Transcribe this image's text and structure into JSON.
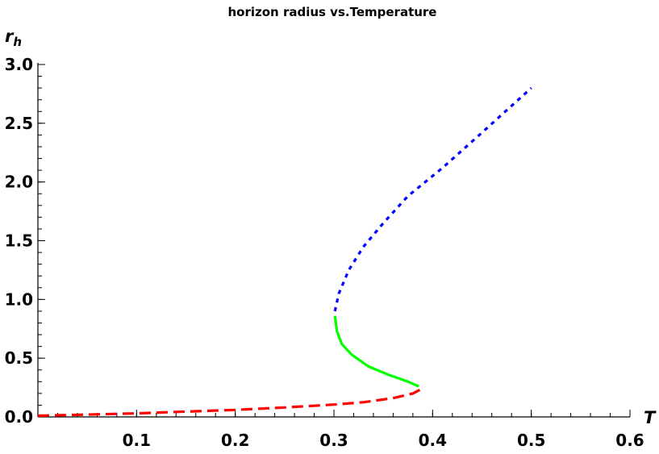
{
  "chart_data": {
    "type": "line",
    "title": "horizon radius vs.Temperature",
    "xlabel": "T",
    "ylabel_main": "r",
    "ylabel_sub": "h",
    "xlim": [
      0,
      0.6
    ],
    "ylim": [
      0,
      3.0
    ],
    "x_ticks": [
      {
        "value": 0.1,
        "label": "0.1"
      },
      {
        "value": 0.2,
        "label": "0.2"
      },
      {
        "value": 0.3,
        "label": "0.3"
      },
      {
        "value": 0.4,
        "label": "0.4"
      },
      {
        "value": 0.5,
        "label": "0.5"
      },
      {
        "value": 0.6,
        "label": "0.6"
      }
    ],
    "y_ticks": [
      {
        "value": 0.0,
        "label": "0.0"
      },
      {
        "value": 0.5,
        "label": "0.5"
      },
      {
        "value": 1.0,
        "label": "1.0"
      },
      {
        "value": 1.5,
        "label": "1.5"
      },
      {
        "value": 2.0,
        "label": "2.0"
      },
      {
        "value": 2.5,
        "label": "2.5"
      },
      {
        "value": 3.0,
        "label": "3.0"
      }
    ],
    "minor_x_step": 0.02,
    "minor_y_step": 0.1,
    "grid": false,
    "series": [
      {
        "color": "#ff0000",
        "style": "dashed",
        "points": [
          [
            0.0,
            0.01
          ],
          [
            0.05,
            0.02
          ],
          [
            0.1,
            0.03
          ],
          [
            0.15,
            0.045
          ],
          [
            0.2,
            0.06
          ],
          [
            0.25,
            0.08
          ],
          [
            0.3,
            0.105
          ],
          [
            0.33,
            0.125
          ],
          [
            0.36,
            0.16
          ],
          [
            0.38,
            0.2
          ],
          [
            0.387,
            0.23
          ]
        ]
      },
      {
        "color": "#00ff00",
        "style": "solid",
        "points": [
          [
            0.386,
            0.26
          ],
          [
            0.375,
            0.3
          ],
          [
            0.355,
            0.36
          ],
          [
            0.335,
            0.43
          ],
          [
            0.318,
            0.53
          ],
          [
            0.308,
            0.62
          ],
          [
            0.303,
            0.73
          ],
          [
            0.301,
            0.86
          ]
        ]
      },
      {
        "color": "#0000ff",
        "style": "dotted",
        "points": [
          [
            0.301,
            0.9
          ],
          [
            0.305,
            1.05
          ],
          [
            0.315,
            1.25
          ],
          [
            0.33,
            1.45
          ],
          [
            0.35,
            1.65
          ],
          [
            0.375,
            1.88
          ],
          [
            0.41,
            2.12
          ],
          [
            0.45,
            2.42
          ],
          [
            0.5,
            2.8
          ]
        ]
      }
    ]
  }
}
